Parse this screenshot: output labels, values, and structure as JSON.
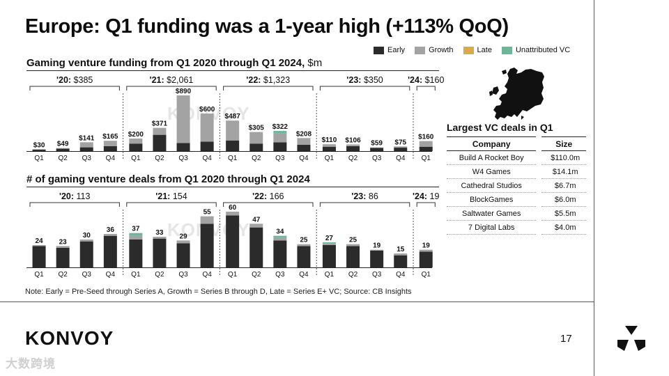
{
  "title": "Europe: Q1 funding was a 1-year high (+113% QoQ)",
  "legend": [
    {
      "label": "Early",
      "color": "#2b2b2b"
    },
    {
      "label": "Growth",
      "color": "#a3a3a3"
    },
    {
      "label": "Late",
      "color": "#d9a94c"
    },
    {
      "label": "Unattributed VC",
      "color": "#6fb59a"
    }
  ],
  "chart_data": [
    {
      "type": "bar",
      "stacked": true,
      "title": "Gaming venture funding from Q1 2020 through Q1 2024,",
      "unit_label": "$m",
      "categories": [
        "Q1",
        "Q2",
        "Q3",
        "Q4",
        "Q1",
        "Q2",
        "Q3",
        "Q4",
        "Q1",
        "Q2",
        "Q3",
        "Q4",
        "Q1",
        "Q2",
        "Q3",
        "Q4",
        "Q1"
      ],
      "groups": [
        {
          "label": "'20:",
          "total": "$385",
          "quarters": 4
        },
        {
          "label": "'21:",
          "total": "$2,061",
          "quarters": 4
        },
        {
          "label": "'22:",
          "total": "$1,323",
          "quarters": 4
        },
        {
          "label": "'23:",
          "total": "$350",
          "quarters": 4
        },
        {
          "label": "'24:",
          "total": "$160",
          "quarters": 1
        }
      ],
      "bar_labels": [
        "$30",
        "$49",
        "$141",
        "$165",
        "$200",
        "$371",
        "$890",
        "$600",
        "$487",
        "$305",
        "$322",
        "$208",
        "$110",
        "$106",
        "$59",
        "$75",
        "$160"
      ],
      "series": [
        {
          "name": "Early",
          "values": [
            22,
            38,
            60,
            80,
            120,
            260,
            130,
            150,
            170,
            120,
            140,
            100,
            70,
            80,
            50,
            55,
            70
          ]
        },
        {
          "name": "Growth",
          "values": [
            8,
            11,
            81,
            85,
            80,
            111,
            760,
            450,
            317,
            185,
            140,
            108,
            40,
            26,
            9,
            20,
            90
          ]
        },
        {
          "name": "Late",
          "values": [
            0,
            0,
            0,
            0,
            0,
            0,
            0,
            0,
            0,
            0,
            0,
            0,
            0,
            0,
            0,
            0,
            0
          ]
        },
        {
          "name": "Unattributed VC",
          "values": [
            0,
            0,
            0,
            0,
            0,
            0,
            0,
            0,
            0,
            0,
            42,
            0,
            0,
            0,
            0,
            0,
            0
          ]
        }
      ],
      "ylim": [
        0,
        890
      ]
    },
    {
      "type": "bar",
      "stacked": true,
      "title": "# of gaming venture deals from Q1 2020 through Q1 2024",
      "categories": [
        "Q1",
        "Q2",
        "Q3",
        "Q4",
        "Q1",
        "Q2",
        "Q3",
        "Q4",
        "Q1",
        "Q2",
        "Q3",
        "Q4",
        "Q1",
        "Q2",
        "Q3",
        "Q4",
        "Q1"
      ],
      "groups": [
        {
          "label": "'20:",
          "total": "113",
          "quarters": 4
        },
        {
          "label": "'21:",
          "total": "154",
          "quarters": 4
        },
        {
          "label": "'22:",
          "total": "166",
          "quarters": 4
        },
        {
          "label": "'23:",
          "total": "86",
          "quarters": 4
        },
        {
          "label": "'24:",
          "total": "19",
          "quarters": 1
        }
      ],
      "bar_labels": [
        "24",
        "23",
        "30",
        "36",
        "37",
        "33",
        "29",
        "55",
        "60",
        "47",
        "34",
        "25",
        "27",
        "25",
        "19",
        "15",
        "19"
      ],
      "series": [
        {
          "name": "Early",
          "values": [
            23,
            21,
            28,
            34,
            30,
            31,
            26,
            47,
            56,
            43,
            29,
            23,
            24,
            23,
            18,
            13,
            17
          ]
        },
        {
          "name": "Growth",
          "values": [
            1,
            2,
            2,
            2,
            4,
            2,
            3,
            8,
            4,
            4,
            3,
            2,
            2,
            2,
            1,
            2,
            2
          ]
        },
        {
          "name": "Late",
          "values": [
            0,
            0,
            0,
            0,
            0,
            0,
            0,
            0,
            0,
            0,
            0,
            0,
            0,
            0,
            0,
            0,
            0
          ]
        },
        {
          "name": "Unattributed VC",
          "values": [
            0,
            0,
            0,
            0,
            3,
            0,
            0,
            0,
            0,
            0,
            2,
            0,
            1,
            0,
            0,
            0,
            0
          ]
        }
      ],
      "ylim": [
        0,
        60
      ]
    }
  ],
  "deals": {
    "title": "Largest VC deals in Q1",
    "headers": {
      "company": "Company",
      "size": "Size"
    },
    "rows": [
      {
        "company": "Build A Rocket Boy",
        "size": "$110.0m"
      },
      {
        "company": "W4 Games",
        "size": "$14.1m"
      },
      {
        "company": "Cathedral Studios",
        "size": "$6.7m"
      },
      {
        "company": "BlockGames",
        "size": "$6.0m"
      },
      {
        "company": "Saltwater Games",
        "size": "$5.5m"
      },
      {
        "company": "7 Digital Labs",
        "size": "$4.0m"
      }
    ]
  },
  "footnote": "Note: Early = Pre-Seed through Series A, Growth = Series B through D, Late = Series E+ VC; Source: CB Insights",
  "brand": "KONVOY",
  "chart_watermark": "KONVOY",
  "page_number": "17",
  "source_watermark": "大数跨境"
}
